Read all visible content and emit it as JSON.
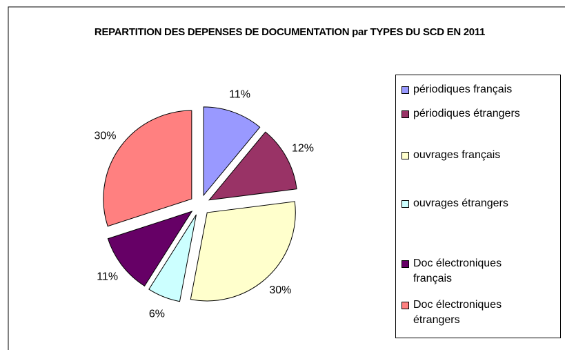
{
  "chart_data": {
    "type": "pie",
    "title": "REPARTITION DES DEPENSES DE DOCUMENTATION par TYPES DU SCD EN 2011",
    "categories": [
      "périodiques français",
      "périodiques étrangers",
      "ouvrages français",
      "ouvrages étrangers",
      "Doc électroniques français",
      "Doc électroniques étrangers"
    ],
    "values": [
      11,
      12,
      30,
      6,
      11,
      30
    ],
    "value_labels": [
      "11%",
      "12%",
      "30%",
      "6%",
      "11%",
      "30%"
    ],
    "colors": [
      "#9999ff",
      "#993366",
      "#ffffcc",
      "#ccffff",
      "#660066",
      "#ff8080"
    ],
    "legend": "right"
  }
}
